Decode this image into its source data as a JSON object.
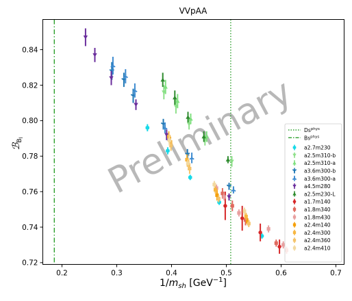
{
  "chart_data": {
    "type": "scatter",
    "title": "VVpAA",
    "xlabel": "1/m_sh [GeV^-1]",
    "ylabel": "B_Bl",
    "xlim": [
      0.165,
      0.715
    ],
    "ylim": [
      0.719,
      0.857
    ],
    "x_ticks": [
      "0.2",
      "0.3",
      "0.4",
      "0.5",
      "0.6",
      "0.7"
    ],
    "y_ticks": [
      "0.72",
      "0.74",
      "0.76",
      "0.78",
      "0.80",
      "0.82",
      "0.84"
    ],
    "grid": false,
    "legend_position": "lower-right",
    "watermark": "Preliminary",
    "reference_lines": [
      {
        "name": "D_s^phys",
        "x": 0.508,
        "color": "#2ca02c",
        "style": "dotted"
      },
      {
        "name": "B_s^phys",
        "x": 0.186,
        "color": "#2ca02c",
        "style": "dashdot"
      }
    ],
    "series": [
      {
        "name": "a2.7m230",
        "color": "#17d9e8",
        "marker": "hexagon",
        "points": [
          {
            "x": 0.356,
            "y": 0.796,
            "err": 0.002
          },
          {
            "x": 0.393,
            "y": 0.783,
            "err": 0.002
          },
          {
            "x": 0.434,
            "y": 0.768,
            "err": 0.0015
          },
          {
            "x": 0.487,
            "y": 0.754,
            "err": 0.0015
          },
          {
            "x": 0.565,
            "y": 0.735,
            "err": 0.0015
          }
        ]
      },
      {
        "name": "a2.5m310-b",
        "color": "#8ee08a",
        "marker": "triangle-down",
        "points": [
          {
            "x": 0.386,
            "y": 0.816,
            "err": 0.004
          },
          {
            "x": 0.408,
            "y": 0.808,
            "err": 0.004
          },
          {
            "x": 0.432,
            "y": 0.798,
            "err": 0.003
          },
          {
            "x": 0.461,
            "y": 0.789,
            "err": 0.003
          },
          {
            "x": 0.51,
            "y": 0.777,
            "err": 0.003
          }
        ]
      },
      {
        "name": "a2.5m310-a",
        "color": "#7fe07f",
        "marker": "triangle-up",
        "points": [
          {
            "x": 0.389,
            "y": 0.819,
            "err": 0.004
          },
          {
            "x": 0.411,
            "y": 0.811,
            "err": 0.004
          },
          {
            "x": 0.435,
            "y": 0.801,
            "err": 0.003
          },
          {
            "x": 0.464,
            "y": 0.791,
            "err": 0.003
          }
        ]
      },
      {
        "name": "a3.6m300-b",
        "color": "#1f77b4",
        "marker": "tri-down",
        "points": [
          {
            "x": 0.291,
            "y": 0.828,
            "err": 0.005
          },
          {
            "x": 0.313,
            "y": 0.823,
            "err": 0.004
          },
          {
            "x": 0.33,
            "y": 0.814,
            "err": 0.004
          },
          {
            "x": 0.385,
            "y": 0.798,
            "err": 0.003
          },
          {
            "x": 0.429,
            "y": 0.781,
            "err": 0.003
          },
          {
            "x": 0.505,
            "y": 0.763,
            "err": 0.002
          }
        ]
      },
      {
        "name": "a3.6m300-a",
        "color": "#3c8ad0",
        "marker": "tri-up",
        "points": [
          {
            "x": 0.293,
            "y": 0.831,
            "err": 0.005
          },
          {
            "x": 0.316,
            "y": 0.825,
            "err": 0.004
          },
          {
            "x": 0.333,
            "y": 0.817,
            "err": 0.004
          },
          {
            "x": 0.388,
            "y": 0.796,
            "err": 0.003
          },
          {
            "x": 0.437,
            "y": 0.779,
            "err": 0.003
          },
          {
            "x": 0.513,
            "y": 0.761,
            "err": 0.002
          }
        ]
      },
      {
        "name": "a4.5m280",
        "color": "#6a2e9c",
        "marker": "triangle-down",
        "points": [
          {
            "x": 0.243,
            "y": 0.847,
            "err": 0.005
          },
          {
            "x": 0.26,
            "y": 0.837,
            "err": 0.004
          },
          {
            "x": 0.29,
            "y": 0.824,
            "err": 0.004
          },
          {
            "x": 0.335,
            "y": 0.809,
            "err": 0.003
          },
          {
            "x": 0.391,
            "y": 0.792,
            "err": 0.003
          },
          {
            "x": 0.505,
            "y": 0.757,
            "err": 0.002
          }
        ]
      },
      {
        "name": "a2.5m230-L",
        "color": "#2e8b2e",
        "marker": "triangle-up",
        "points": [
          {
            "x": 0.384,
            "y": 0.823,
            "err": 0.004
          },
          {
            "x": 0.406,
            "y": 0.813,
            "err": 0.004
          },
          {
            "x": 0.43,
            "y": 0.802,
            "err": 0.003
          },
          {
            "x": 0.459,
            "y": 0.791,
            "err": 0.003
          },
          {
            "x": 0.503,
            "y": 0.778,
            "err": 0.002
          }
        ]
      },
      {
        "name": "a1.7m140",
        "color": "#d62728",
        "marker": "circle",
        "points": [
          {
            "x": 0.498,
            "y": 0.752,
            "err": 0.008
          },
          {
            "x": 0.529,
            "y": 0.745,
            "err": 0.007
          },
          {
            "x": 0.562,
            "y": 0.737,
            "err": 0.005
          },
          {
            "x": 0.597,
            "y": 0.729,
            "err": 0.004
          }
        ]
      },
      {
        "name": "a1.8m340",
        "color": "#e06a5e",
        "marker": "square",
        "points": [
          {
            "x": 0.493,
            "y": 0.759,
            "err": 0.003
          },
          {
            "x": 0.511,
            "y": 0.752,
            "err": 0.003
          },
          {
            "x": 0.535,
            "y": 0.744,
            "err": 0.003
          },
          {
            "x": 0.591,
            "y": 0.731,
            "err": 0.002
          },
          {
            "x": 0.61,
            "y": 0.727,
            "err": 0.002
          }
        ]
      },
      {
        "name": "a1.8m430",
        "color": "#e8a0a0",
        "marker": "square",
        "points": [
          {
            "x": 0.482,
            "y": 0.762,
            "err": 0.002
          },
          {
            "x": 0.496,
            "y": 0.757,
            "err": 0.002
          },
          {
            "x": 0.523,
            "y": 0.748,
            "err": 0.002
          },
          {
            "x": 0.577,
            "y": 0.739,
            "err": 0.002
          },
          {
            "x": 0.604,
            "y": 0.73,
            "err": 0.002
          }
        ]
      },
      {
        "name": "a2.4m140",
        "color": "#f5a00a",
        "marker": "square",
        "points": [
          {
            "x": 0.398,
            "y": 0.788,
            "err": 0.003
          },
          {
            "x": 0.431,
            "y": 0.775,
            "err": 0.003
          },
          {
            "x": 0.483,
            "y": 0.758,
            "err": 0.003
          },
          {
            "x": 0.539,
            "y": 0.743,
            "err": 0.002
          }
        ]
      },
      {
        "name": "a2.4m300",
        "color": "#f7b640",
        "marker": "square",
        "points": [
          {
            "x": 0.395,
            "y": 0.791,
            "err": 0.003
          },
          {
            "x": 0.428,
            "y": 0.778,
            "err": 0.003
          },
          {
            "x": 0.48,
            "y": 0.761,
            "err": 0.002
          },
          {
            "x": 0.536,
            "y": 0.746,
            "err": 0.002
          }
        ]
      },
      {
        "name": "a2.4m360",
        "color": "#f4c36a",
        "marker": "square",
        "points": [
          {
            "x": 0.399,
            "y": 0.786,
            "err": 0.003
          },
          {
            "x": 0.433,
            "y": 0.773,
            "err": 0.003
          },
          {
            "x": 0.486,
            "y": 0.756,
            "err": 0.002
          },
          {
            "x": 0.541,
            "y": 0.742,
            "err": 0.002
          }
        ]
      },
      {
        "name": "a2.4m410",
        "color": "#f2d9a0",
        "marker": "square",
        "points": [
          {
            "x": 0.396,
            "y": 0.789,
            "err": 0.003
          },
          {
            "x": 0.43,
            "y": 0.776,
            "err": 0.002
          },
          {
            "x": 0.478,
            "y": 0.764,
            "err": 0.002
          },
          {
            "x": 0.533,
            "y": 0.749,
            "err": 0.002
          }
        ]
      }
    ]
  }
}
